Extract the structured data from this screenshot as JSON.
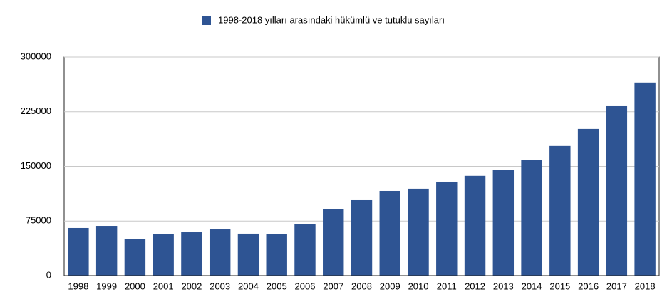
{
  "chart_data": {
    "type": "bar",
    "categories": [
      "1998",
      "1999",
      "2000",
      "2001",
      "2002",
      "2003",
      "2004",
      "2005",
      "2006",
      "2007",
      "2008",
      "2009",
      "2010",
      "2011",
      "2012",
      "2013",
      "2014",
      "2015",
      "2016",
      "2017",
      "2018"
    ],
    "series": [
      {
        "name": "1998-2018 yılları arasındaki hükümlü ve tutuklu sayıları",
        "color": "#2e5493",
        "values": [
          65500,
          67400,
          50000,
          56700,
          59600,
          63500,
          57700,
          56700,
          70400,
          91000,
          103600,
          116300,
          119300,
          129000,
          137000,
          144700,
          158400,
          178000,
          201400,
          232600,
          265000
        ]
      }
    ],
    "ylim": [
      0,
      300000
    ],
    "yticks": [
      0,
      75000,
      150000,
      225000,
      300000
    ],
    "grid": true,
    "legend": "top"
  }
}
